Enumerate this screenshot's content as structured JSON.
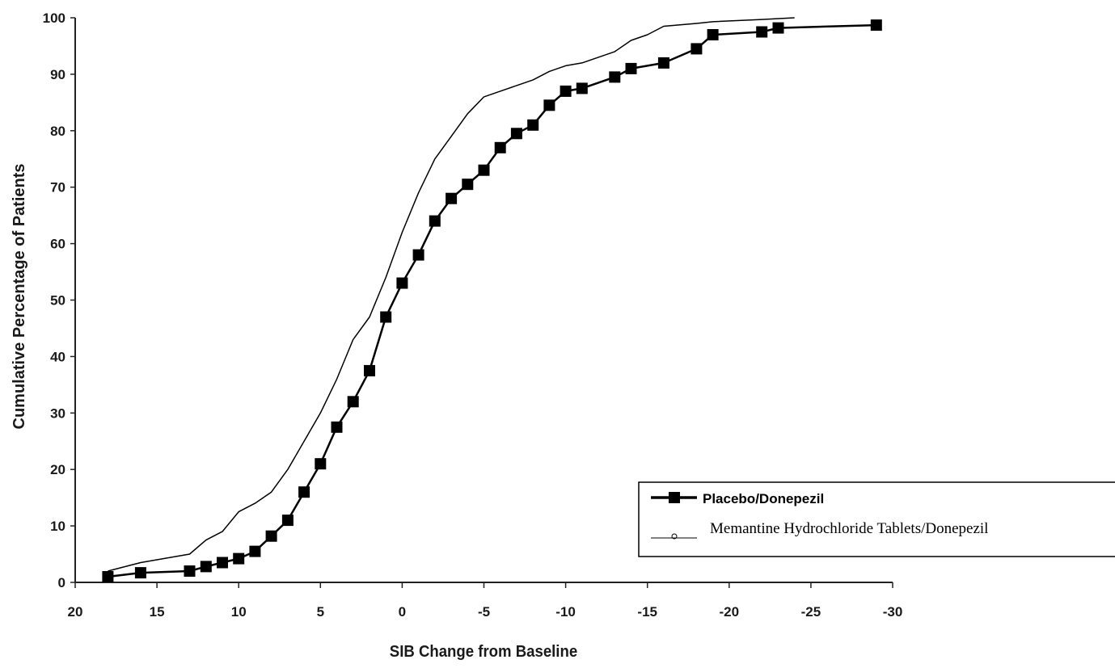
{
  "chart_data": {
    "type": "line",
    "title": "",
    "xlabel": "SIB Change from Baseline",
    "ylabel": "Cumulative Percentage of Patients",
    "xlim": [
      20,
      -30
    ],
    "ylim": [
      0,
      100
    ],
    "x_reversed": true,
    "x_ticks": [
      "20",
      "15",
      "10",
      "5",
      "0",
      "-5",
      "-10",
      "-15",
      "-20",
      "-25",
      "-30"
    ],
    "y_ticks": [
      "0",
      "10",
      "20",
      "30",
      "40",
      "50",
      "60",
      "70",
      "80",
      "90",
      "100"
    ],
    "grid": false,
    "legend_position": "bottom-right",
    "series": [
      {
        "name": "Placebo/Donepezil",
        "color": "#000000",
        "marker": "square",
        "x": [
          18,
          16,
          13,
          12,
          11,
          10,
          9,
          8,
          7,
          6,
          5,
          4,
          3,
          2,
          1,
          0,
          -1,
          -2,
          -3,
          -4,
          -5,
          -6,
          -7,
          -8,
          -9,
          -10,
          -11,
          -13,
          -14,
          -16,
          -18,
          -19,
          -22,
          -23,
          -29
        ],
        "y": [
          1,
          1.7,
          2,
          2.8,
          3.5,
          4.2,
          5.5,
          8.2,
          11,
          16,
          21,
          27.5,
          32,
          37.5,
          47,
          53,
          58,
          64,
          68,
          70.5,
          73,
          77,
          79.5,
          81,
          84.5,
          87,
          87.5,
          89.5,
          91,
          92,
          94.5,
          97,
          97.5,
          98.2,
          98.7
        ]
      },
      {
        "name": "Memantine Hydrochloride Tablets/Donepezil",
        "color": "#000000",
        "marker": "none",
        "x": [
          18,
          16,
          13,
          12,
          11,
          10,
          9,
          8,
          7,
          6,
          5,
          4,
          3,
          2,
          1,
          0,
          -1,
          -2,
          -3,
          -4,
          -5,
          -6,
          -7,
          -8,
          -9,
          -10,
          -11,
          -13,
          -14,
          -15,
          -16,
          -18,
          -19,
          -22,
          -24
        ],
        "y": [
          2,
          3.5,
          5,
          7.5,
          9,
          12.5,
          14,
          16,
          20,
          25,
          30,
          36,
          43,
          47,
          54,
          62,
          69,
          75,
          79,
          83,
          86,
          87,
          88,
          89,
          90.5,
          91.5,
          92,
          94,
          96,
          97,
          98.5,
          99,
          99.3,
          99.7,
          100
        ]
      }
    ]
  }
}
